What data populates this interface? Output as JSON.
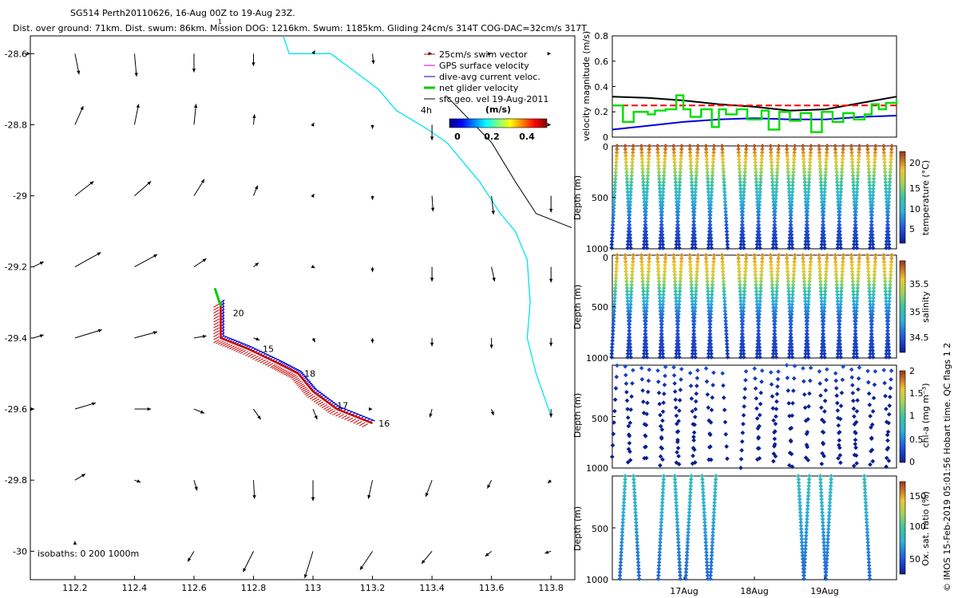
{
  "header": {
    "title": "SG514 Perth20110626, 16-Aug 00Z to 19-Aug 23Z.",
    "subtitle": "Dist. over ground: 71km. Dist. swum: 86km. Mission DOG: 1216km. Swum: 1185km. Gliding 24cm/s 314T COG-DAC=32cm/s 317T",
    "stray_glyph": "1"
  },
  "side_note": "© IMOS 15-Feb-2019 05:01:56 Hobart time. QC flags 1  2",
  "colors": {
    "swim": "#cc0000",
    "gps": "#cc00cc",
    "dac": "#0000cc",
    "net": "#00cc00",
    "coast": "#00e5ee",
    "isobath": "#000000"
  },
  "chart_data": [
    {
      "type": "map",
      "name": "trajectory-map",
      "xlim": [
        112.05,
        113.88
      ],
      "ylim": [
        -30.08,
        -28.55
      ],
      "xticks": [
        "112.2",
        "112.4",
        "112.6",
        "112.8",
        "113",
        "113.2",
        "113.4",
        "113.6",
        "113.8"
      ],
      "yticks": [
        "-28.6",
        "-28.8",
        "-29",
        "-29.2",
        "-29.4",
        "-29.6",
        "-29.8",
        "-30"
      ],
      "legend": [
        {
          "label": "25cm/s swim vector",
          "color": "#cc0000"
        },
        {
          "label": "GPS surface velocity",
          "color": "#cc00cc"
        },
        {
          "label": "dive-avg current veloc.",
          "color": "#0000cc"
        },
        {
          "label": "net glider velocity",
          "color": "#00cc00"
        },
        {
          "label": "sfc geo. vel 19-Aug-2011",
          "color": "#000000"
        }
      ],
      "annotation_4h": "4h",
      "colorbar": {
        "label": "(m/s)",
        "ticks": [
          "0",
          "0.2",
          "0.4"
        ],
        "range": [
          0,
          0.5
        ]
      },
      "isobath_note": "isobaths: 0   200  1000m",
      "day_labels": [
        {
          "text": "20",
          "lon": 112.72,
          "lat": -29.33
        },
        {
          "text": "15",
          "lon": 112.82,
          "lat": -29.43
        },
        {
          "text": "18",
          "lon": 112.96,
          "lat": -29.5
        },
        {
          "text": "17",
          "lon": 113.07,
          "lat": -29.59
        },
        {
          "text": "16",
          "lon": 113.21,
          "lat": -29.64
        }
      ],
      "track": [
        [
          112.69,
          -29.3
        ],
        [
          112.69,
          -29.4
        ],
        [
          112.78,
          -29.43
        ],
        [
          112.88,
          -29.47
        ],
        [
          112.95,
          -29.5
        ],
        [
          113.0,
          -29.55
        ],
        [
          113.08,
          -29.6
        ],
        [
          113.2,
          -29.64
        ]
      ],
      "net_vector": [
        [
          112.69,
          -29.31
        ],
        [
          112.67,
          -29.26
        ]
      ],
      "coastline": [
        [
          112.9,
          -28.55
        ],
        [
          112.92,
          -28.6
        ],
        [
          113.06,
          -28.6
        ],
        [
          113.22,
          -28.7
        ],
        [
          113.28,
          -28.76
        ],
        [
          113.38,
          -28.81
        ],
        [
          113.45,
          -28.85
        ],
        [
          113.56,
          -28.96
        ],
        [
          113.63,
          -29.05
        ],
        [
          113.68,
          -29.1
        ],
        [
          113.72,
          -29.18
        ],
        [
          113.73,
          -29.3
        ],
        [
          113.72,
          -29.4
        ],
        [
          113.75,
          -29.5
        ],
        [
          113.8,
          -29.62
        ]
      ],
      "isobath_200": [
        [
          113.45,
          -28.72
        ],
        [
          113.6,
          -28.85
        ],
        [
          113.68,
          -28.96
        ],
        [
          113.75,
          -29.05
        ],
        [
          113.87,
          -29.09
        ]
      ],
      "current_vectors": [
        {
          "lon": 112.05,
          "lat": -28.6,
          "u": 0.0,
          "v": 0.0
        },
        {
          "lon": 112.2,
          "lat": -28.6,
          "u": 0.04,
          "v": -0.2
        },
        {
          "lon": 112.4,
          "lat": -28.6,
          "u": 0.02,
          "v": -0.22
        },
        {
          "lon": 112.6,
          "lat": -28.6,
          "u": 0.0,
          "v": -0.18
        },
        {
          "lon": 112.8,
          "lat": -28.6,
          "u": 0.0,
          "v": -0.12
        },
        {
          "lon": 113.0,
          "lat": -28.6,
          "u": 0.02,
          "v": 0.03
        },
        {
          "lon": 113.2,
          "lat": -28.6,
          "u": 0.01,
          "v": -0.1
        },
        {
          "lon": 113.4,
          "lat": -28.6,
          "u": 0.0,
          "v": 0.0
        },
        {
          "lon": 113.6,
          "lat": -28.6,
          "u": 0.0,
          "v": 0.0
        },
        {
          "lon": 113.8,
          "lat": -28.6,
          "u": 0.0,
          "v": 0.0
        },
        {
          "lon": 112.2,
          "lat": -28.8,
          "u": 0.08,
          "v": 0.18
        },
        {
          "lon": 112.4,
          "lat": -28.8,
          "u": 0.04,
          "v": 0.2
        },
        {
          "lon": 112.6,
          "lat": -28.8,
          "u": 0.02,
          "v": 0.2
        },
        {
          "lon": 112.8,
          "lat": -28.8,
          "u": 0.01,
          "v": 0.1
        },
        {
          "lon": 113.0,
          "lat": -28.8,
          "u": 0.01,
          "v": 0.02
        },
        {
          "lon": 113.2,
          "lat": -28.8,
          "u": 0.0,
          "v": -0.04
        },
        {
          "lon": 113.4,
          "lat": -28.8,
          "u": 0.0,
          "v": -0.15
        },
        {
          "lon": 113.6,
          "lat": -28.8,
          "u": 0.0,
          "v": 0.0
        },
        {
          "lon": 113.8,
          "lat": -28.8,
          "u": 0.0,
          "v": 0.0
        },
        {
          "lon": 112.2,
          "lat": -29.0,
          "u": 0.18,
          "v": 0.14
        },
        {
          "lon": 112.4,
          "lat": -29.0,
          "u": 0.16,
          "v": 0.14
        },
        {
          "lon": 112.6,
          "lat": -29.0,
          "u": 0.1,
          "v": 0.16
        },
        {
          "lon": 112.8,
          "lat": -29.0,
          "u": 0.04,
          "v": 0.1
        },
        {
          "lon": 113.0,
          "lat": -29.0,
          "u": 0.01,
          "v": 0.02
        },
        {
          "lon": 113.2,
          "lat": -29.0,
          "u": 0.0,
          "v": -0.04
        },
        {
          "lon": 113.4,
          "lat": -29.0,
          "u": 0.01,
          "v": -0.15
        },
        {
          "lon": 113.6,
          "lat": -29.0,
          "u": 0.02,
          "v": -0.18
        },
        {
          "lon": 113.8,
          "lat": -29.0,
          "u": 0.0,
          "v": -0.16
        },
        {
          "lon": 112.06,
          "lat": -29.2,
          "u": 0.1,
          "v": 0.05
        },
        {
          "lon": 112.2,
          "lat": -29.2,
          "u": 0.25,
          "v": 0.14
        },
        {
          "lon": 112.4,
          "lat": -29.2,
          "u": 0.22,
          "v": 0.12
        },
        {
          "lon": 112.6,
          "lat": -29.2,
          "u": 0.12,
          "v": 0.08
        },
        {
          "lon": 112.8,
          "lat": -29.2,
          "u": 0.05,
          "v": 0.04
        },
        {
          "lon": 113.0,
          "lat": -29.2,
          "u": 0.02,
          "v": -0.01
        },
        {
          "lon": 113.2,
          "lat": -29.2,
          "u": 0.0,
          "v": -0.05
        },
        {
          "lon": 113.4,
          "lat": -29.2,
          "u": 0.0,
          "v": -0.14
        },
        {
          "lon": 113.6,
          "lat": -29.2,
          "u": 0.03,
          "v": -0.14
        },
        {
          "lon": 113.8,
          "lat": -29.2,
          "u": 0.0,
          "v": -0.15
        },
        {
          "lon": 112.06,
          "lat": -29.4,
          "u": 0.1,
          "v": 0.03
        },
        {
          "lon": 112.2,
          "lat": -29.4,
          "u": 0.26,
          "v": 0.08
        },
        {
          "lon": 112.4,
          "lat": -29.4,
          "u": 0.22,
          "v": 0.06
        },
        {
          "lon": 112.6,
          "lat": -29.4,
          "u": 0.12,
          "v": 0.02
        },
        {
          "lon": 112.8,
          "lat": -29.4,
          "u": 0.06,
          "v": -0.02
        },
        {
          "lon": 113.0,
          "lat": -29.4,
          "u": 0.02,
          "v": -0.04
        },
        {
          "lon": 113.2,
          "lat": -29.4,
          "u": 0.0,
          "v": -0.05
        },
        {
          "lon": 113.4,
          "lat": -29.4,
          "u": 0.0,
          "v": -0.08
        },
        {
          "lon": 113.6,
          "lat": -29.4,
          "u": 0.0,
          "v": -0.1
        },
        {
          "lon": 113.8,
          "lat": -29.4,
          "u": 0.0,
          "v": -0.08
        },
        {
          "lon": 112.06,
          "lat": -29.6,
          "u": 0.01,
          "v": 0.0
        },
        {
          "lon": 112.2,
          "lat": -29.6,
          "u": 0.2,
          "v": 0.06
        },
        {
          "lon": 112.4,
          "lat": -29.6,
          "u": 0.16,
          "v": 0.0
        },
        {
          "lon": 112.6,
          "lat": -29.6,
          "u": 0.1,
          "v": -0.04
        },
        {
          "lon": 112.8,
          "lat": -29.6,
          "u": 0.07,
          "v": -0.1
        },
        {
          "lon": 113.0,
          "lat": -29.6,
          "u": 0.04,
          "v": -0.1
        },
        {
          "lon": 113.2,
          "lat": -29.6,
          "u": 0.0,
          "v": 0.0
        },
        {
          "lon": 113.4,
          "lat": -29.6,
          "u": -0.02,
          "v": -0.08
        },
        {
          "lon": 113.6,
          "lat": -29.6,
          "u": 0.02,
          "v": -0.06
        },
        {
          "lon": 113.8,
          "lat": -29.6,
          "u": 0.0,
          "v": -0.08
        },
        {
          "lon": 112.2,
          "lat": -29.8,
          "u": 0.1,
          "v": 0.06
        },
        {
          "lon": 112.4,
          "lat": -29.8,
          "u": 0.06,
          "v": -0.02
        },
        {
          "lon": 112.6,
          "lat": -29.8,
          "u": 0.03,
          "v": -0.1
        },
        {
          "lon": 112.8,
          "lat": -29.8,
          "u": 0.01,
          "v": -0.18
        },
        {
          "lon": 113.0,
          "lat": -29.8,
          "u": 0.0,
          "v": -0.2
        },
        {
          "lon": 113.2,
          "lat": -29.8,
          "u": -0.04,
          "v": -0.18
        },
        {
          "lon": 113.4,
          "lat": -29.8,
          "u": -0.06,
          "v": -0.16
        },
        {
          "lon": 113.6,
          "lat": -29.8,
          "u": -0.04,
          "v": -0.08
        },
        {
          "lon": 113.8,
          "lat": -29.8,
          "u": -0.03,
          "v": -0.03
        },
        {
          "lon": 112.2,
          "lat": -29.98,
          "u": 0.0,
          "v": 0.03
        },
        {
          "lon": 112.6,
          "lat": -30.0,
          "u": -0.06,
          "v": -0.1
        },
        {
          "lon": 112.8,
          "lat": -30.0,
          "u": -0.1,
          "v": -0.2
        },
        {
          "lon": 113.0,
          "lat": -30.0,
          "u": -0.08,
          "v": -0.26
        },
        {
          "lon": 113.2,
          "lat": -30.0,
          "u": -0.12,
          "v": -0.18
        },
        {
          "lon": 113.4,
          "lat": -30.0,
          "u": -0.1,
          "v": -0.12
        },
        {
          "lon": 113.6,
          "lat": -30.0,
          "u": -0.06,
          "v": -0.05
        },
        {
          "lon": 113.8,
          "lat": -30.0,
          "u": -0.06,
          "v": -0.02
        }
      ]
    },
    {
      "type": "line",
      "name": "velocity-magnitude",
      "ylabel": "velocity magnitude (m/s)",
      "ylim": [
        0,
        0.8
      ],
      "yticks": [
        "0",
        "0.2",
        "0.4",
        "0.6",
        "0.8"
      ],
      "x_days": [
        16,
        20
      ],
      "series": [
        {
          "color": "#000000",
          "x": [
            16.0,
            16.5,
            17.0,
            17.5,
            18.0,
            18.5,
            19.0,
            19.5,
            20.0
          ],
          "y": [
            0.32,
            0.31,
            0.29,
            0.26,
            0.24,
            0.21,
            0.22,
            0.27,
            0.32
          ]
        },
        {
          "color": "#ff0000",
          "dashed": true,
          "x": [
            16.0,
            20.0
          ],
          "y": [
            0.25,
            0.25
          ]
        },
        {
          "color": "#0000dd",
          "x": [
            16.0,
            16.5,
            17.0,
            17.5,
            18.0,
            18.5,
            19.0,
            19.5,
            20.0
          ],
          "y": [
            0.06,
            0.09,
            0.12,
            0.14,
            0.15,
            0.14,
            0.14,
            0.16,
            0.17
          ]
        },
        {
          "color": "#00dd00",
          "step": true,
          "x": [
            16.0,
            16.15,
            16.3,
            16.5,
            16.6,
            16.75,
            16.9,
            17.0,
            17.1,
            17.25,
            17.4,
            17.5,
            17.6,
            17.75,
            17.9,
            18.1,
            18.2,
            18.35,
            18.5,
            18.65,
            18.8,
            18.95,
            19.1,
            19.25,
            19.4,
            19.55,
            19.65,
            19.75,
            19.85,
            20.0
          ],
          "y": [
            0.25,
            0.12,
            0.2,
            0.18,
            0.21,
            0.22,
            0.33,
            0.22,
            0.16,
            0.22,
            0.08,
            0.22,
            0.18,
            0.22,
            0.14,
            0.21,
            0.06,
            0.2,
            0.13,
            0.19,
            0.04,
            0.2,
            0.12,
            0.19,
            0.14,
            0.18,
            0.26,
            0.22,
            0.27,
            0.3
          ]
        }
      ]
    },
    {
      "type": "scatter",
      "name": "temperature-section",
      "ylabel": "Depth (m)",
      "yticks": [
        "0",
        "500",
        "1000"
      ],
      "cbar_label": "temperature (°C)",
      "cbar_ticks": [
        "5",
        "10",
        "15",
        "20"
      ],
      "cbar_range": [
        3,
        23
      ],
      "profiles": 35,
      "min_depth": 1000,
      "layers": [
        [
          0,
          22
        ],
        [
          200,
          17
        ],
        [
          400,
          12
        ],
        [
          600,
          9
        ],
        [
          800,
          6
        ],
        [
          1000,
          4
        ]
      ]
    },
    {
      "type": "scatter",
      "name": "salinity-section",
      "ylabel": "Depth (m)",
      "yticks": [
        "0",
        "500",
        "1000"
      ],
      "cbar_label": "salinity",
      "cbar_ticks": [
        "34.5",
        "35",
        "35.5"
      ],
      "cbar_range": [
        34.3,
        35.8
      ],
      "profiles": 35,
      "min_depth": 1000,
      "layers": [
        [
          0,
          35.6
        ],
        [
          200,
          35.4
        ],
        [
          400,
          34.9
        ],
        [
          600,
          34.6
        ],
        [
          800,
          34.5
        ],
        [
          1000,
          34.4
        ]
      ]
    },
    {
      "type": "scatter",
      "name": "chlorophyll-section",
      "ylabel": "Depth (m)",
      "yticks": [
        "0",
        "500",
        "1000"
      ],
      "cbar_label": "chl-a (mg m⁻³)",
      "cbar_ticks": [
        "0",
        "0.5",
        "1",
        "1.5",
        "2"
      ],
      "cbar_range": [
        0,
        2
      ],
      "profiles": 35,
      "min_depth": 1000,
      "sparse": true,
      "layers": [
        [
          0,
          0.3
        ],
        [
          100,
          0.2
        ],
        [
          300,
          0.02
        ],
        [
          1000,
          0.0
        ]
      ]
    },
    {
      "type": "scatter",
      "name": "oxygen-section",
      "ylabel": "Depth (m)",
      "yticks": [
        "0",
        "500",
        "1000"
      ],
      "cbar_label": "Ox. sat. ratio (%)",
      "cbar_ticks": [
        "50",
        "100",
        "150"
      ],
      "cbar_range": [
        30,
        180
      ],
      "profiles": 12,
      "min_depth": 1000,
      "xticks": [
        "17Aug",
        "18Aug",
        "19Aug"
      ],
      "layers": [
        [
          0,
          95
        ],
        [
          400,
          80
        ],
        [
          800,
          65
        ],
        [
          1000,
          60
        ]
      ]
    }
  ]
}
